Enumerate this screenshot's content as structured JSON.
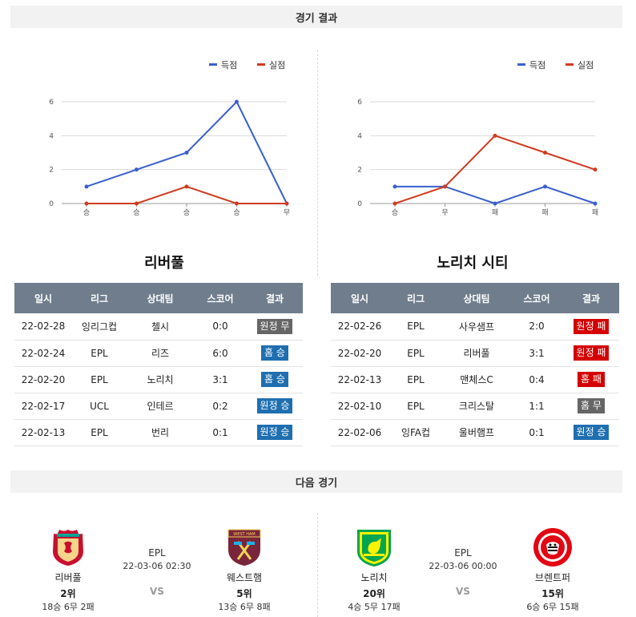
{
  "sections": {
    "results_title": "경기 결과",
    "next_title": "다음 경기"
  },
  "colors": {
    "scored": "#3a5fcd",
    "conceded": "#cf3b1f",
    "home": "#1f6fb0",
    "away": "#1f6fb0",
    "draw": "#666666",
    "loss": "#d40000"
  },
  "chart_data": [
    {
      "type": "line",
      "legend_placement": "top-right",
      "categories": [
        "승",
        "승",
        "승",
        "승",
        "무"
      ],
      "yticks": [
        0,
        2,
        4,
        6
      ],
      "ylim": [
        0,
        6
      ],
      "grid": true,
      "series": [
        {
          "name": "득점",
          "values": [
            1,
            2,
            3,
            6,
            0
          ]
        },
        {
          "name": "실점",
          "values": [
            0,
            0,
            1,
            0,
            0
          ]
        }
      ]
    },
    {
      "type": "line",
      "legend_placement": "top-right",
      "categories": [
        "승",
        "무",
        "패",
        "패",
        "패"
      ],
      "yticks": [
        0,
        2,
        4,
        6
      ],
      "ylim": [
        0,
        6
      ],
      "grid": true,
      "series": [
        {
          "name": "득점",
          "values": [
            1,
            1,
            0,
            1,
            0
          ]
        },
        {
          "name": "실점",
          "values": [
            0,
            1,
            4,
            3,
            2
          ]
        }
      ]
    }
  ],
  "teams": {
    "left": {
      "name": "리버풀",
      "headers": [
        "일시",
        "리그",
        "상대팀",
        "스코어",
        "결과"
      ],
      "rows": [
        {
          "date": "22-02-28",
          "league": "잉리그컵",
          "opponent": "첼시",
          "score": "0:0",
          "result": "원정 무",
          "result_type": "draw"
        },
        {
          "date": "22-02-24",
          "league": "EPL",
          "opponent": "리즈",
          "score": "6:0",
          "result": "홈 승",
          "result_type": "home"
        },
        {
          "date": "22-02-20",
          "league": "EPL",
          "opponent": "노리치",
          "score": "3:1",
          "result": "홈 승",
          "result_type": "home"
        },
        {
          "date": "22-02-17",
          "league": "UCL",
          "opponent": "인테르",
          "score": "0:2",
          "result": "원정 승",
          "result_type": "away"
        },
        {
          "date": "22-02-13",
          "league": "EPL",
          "opponent": "번리",
          "score": "0:1",
          "result": "원정 승",
          "result_type": "away"
        }
      ]
    },
    "right": {
      "name": "노리치 시티",
      "headers": [
        "일시",
        "리그",
        "상대팀",
        "스코어",
        "결과"
      ],
      "rows": [
        {
          "date": "22-02-26",
          "league": "EPL",
          "opponent": "사우샘프",
          "score": "2:0",
          "result": "원정 패",
          "result_type": "loss"
        },
        {
          "date": "22-02-20",
          "league": "EPL",
          "opponent": "리버풀",
          "score": "3:1",
          "result": "원정 패",
          "result_type": "loss"
        },
        {
          "date": "22-02-13",
          "league": "EPL",
          "opponent": "맨체스C",
          "score": "0:4",
          "result": "홈 패",
          "result_type": "loss"
        },
        {
          "date": "22-02-10",
          "league": "EPL",
          "opponent": "크리스탈",
          "score": "1:1",
          "result": "홈 무",
          "result_type": "draw"
        },
        {
          "date": "22-02-06",
          "league": "잉FA컵",
          "opponent": "울버햄프",
          "score": "0:1",
          "result": "원정 승",
          "result_type": "away"
        }
      ]
    }
  },
  "next_matches": [
    {
      "home": {
        "name": "리버풀",
        "rank": "2위",
        "record": "18승 6무 2패",
        "logo": "liverpool-crest"
      },
      "away": {
        "name": "웨스트햄",
        "rank": "5위",
        "record": "13승 6무 8패",
        "logo": "westham-crest"
      },
      "league": "EPL",
      "datetime": "22-03-06 02:30",
      "vs": "VS"
    },
    {
      "home": {
        "name": "노리치",
        "rank": "20위",
        "record": "4승 5무 17패",
        "logo": "norwich-crest"
      },
      "away": {
        "name": "브렌트퍼",
        "rank": "15위",
        "record": "6승 6무 15패",
        "logo": "brentford-crest"
      },
      "league": "EPL",
      "datetime": "22-03-06 00:00",
      "vs": "VS"
    }
  ]
}
